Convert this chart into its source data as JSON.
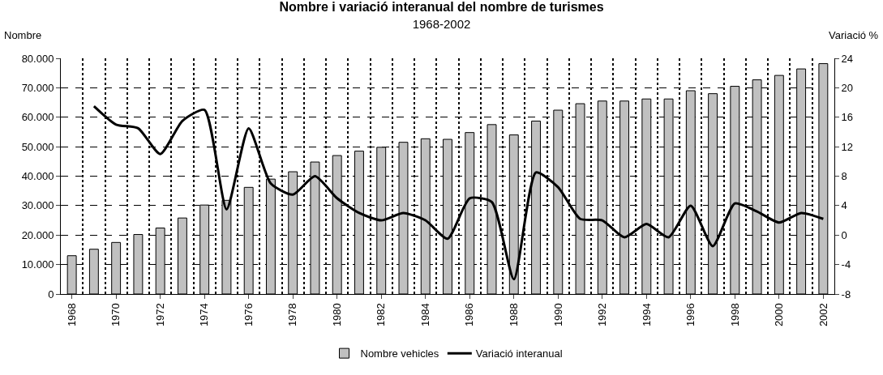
{
  "chart_data": {
    "type": "bar",
    "title": "Nombre i variació interanual del nombre de turismes",
    "subtitle": "1968-2002",
    "ylabel": "Nombre",
    "y2label": "Variació %",
    "categories": [
      "1968",
      null,
      "1970",
      null,
      "1972",
      null,
      "1974",
      null,
      "1976",
      null,
      "1978",
      null,
      "1980",
      null,
      "1982",
      null,
      "1984",
      null,
      "1986",
      null,
      "1988",
      null,
      "1990",
      null,
      "1992",
      null,
      "1994",
      null,
      "1996",
      null,
      "1998",
      null,
      "2000",
      null,
      "2002"
    ],
    "series": [
      {
        "name": "Nombre vehicles",
        "color": "#c0c0c0",
        "values": [
          13000,
          15200,
          17500,
          20200,
          22400,
          25800,
          30200,
          31800,
          36200,
          39000,
          41500,
          44800,
          47000,
          48500,
          49800,
          51500,
          52700,
          52500,
          54800,
          57500,
          54000,
          58700,
          62400,
          64600,
          65500,
          65500,
          66200,
          66200,
          69000,
          68000,
          70500,
          72700,
          74200,
          76400,
          78200
        ]
      },
      {
        "name": "Variació interanual",
        "type": "line",
        "axis": "y2",
        "color": "#000000",
        "values": [
          null,
          17.5,
          15,
          14.5,
          11,
          15.5,
          17,
          3.5,
          14.5,
          7,
          5.5,
          8,
          5,
          3,
          2,
          3,
          2,
          -0.5,
          5,
          4.5,
          -6,
          8.5,
          6.5,
          2.2,
          2,
          -0.3,
          1.5,
          -0.3,
          4,
          -1.5,
          4.3,
          3.2,
          1.7,
          3,
          2.2
        ]
      }
    ],
    "ylim": [
      0,
      80000
    ],
    "yticks": [
      0,
      {
        "value": 10000,
        "label": "10.000"
      },
      {
        "value": 20000,
        "label": "20.000"
      },
      {
        "value": 30000,
        "label": "30.000"
      },
      {
        "value": 40000,
        "label": "40.000"
      },
      {
        "value": 50000,
        "label": "50.000"
      },
      {
        "value": 60000,
        "label": "60.000"
      },
      {
        "value": 70000,
        "label": "70.000"
      },
      {
        "value": 80000,
        "label": "80.000"
      }
    ],
    "y2lim": [
      -8,
      24
    ],
    "y2ticks": [
      -8,
      -4,
      0,
      4,
      8,
      12,
      16,
      20,
      24
    ],
    "grid": true,
    "legend": "bottom",
    "marker": "none",
    "line_style": "solid"
  }
}
